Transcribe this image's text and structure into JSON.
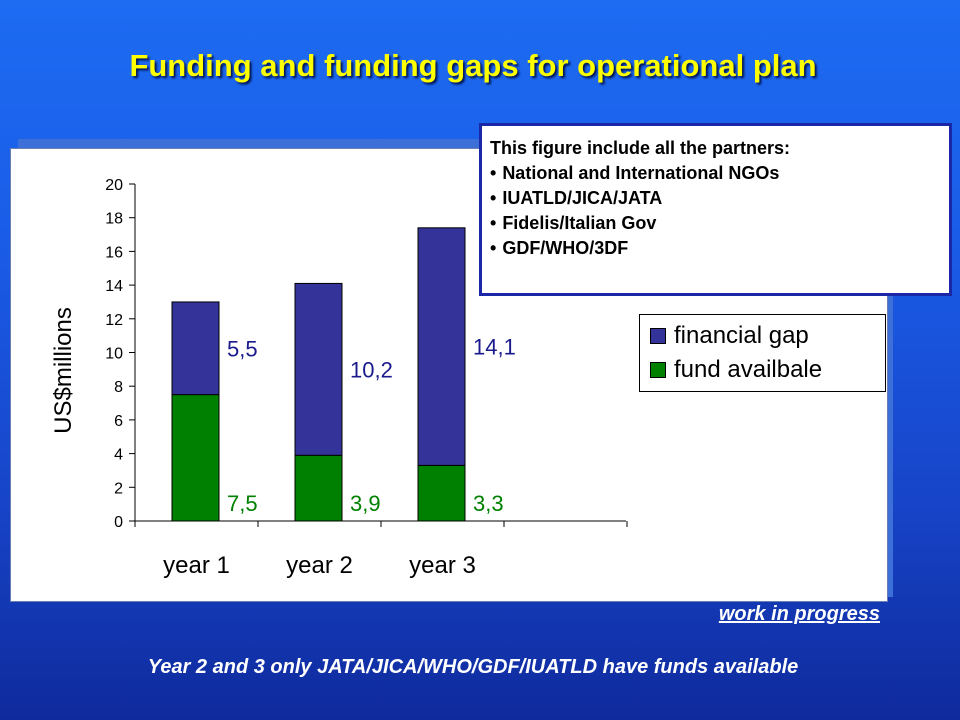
{
  "title": "Funding and funding gaps for operational plan",
  "note": {
    "title": "This figure include all the partners:",
    "items": [
      "National and International NGOs",
      "IUATLD/JICA/JATA",
      "Fidelis/Italian Gov",
      "GDF/WHO/3DF"
    ]
  },
  "status_text": "work in progress",
  "footer": "Year 2 and 3 only JATA/JICA/WHO/GDF/IUATLD have funds available",
  "chart_data": {
    "type": "bar",
    "stacked": true,
    "categories": [
      "year 1",
      "year 2",
      "year 3"
    ],
    "ylabel": "US$millions",
    "ylim": [
      0,
      20
    ],
    "yticks": [
      0,
      2,
      4,
      6,
      8,
      10,
      12,
      14,
      16,
      18,
      20
    ],
    "grid": false,
    "legend_position": "right",
    "series": [
      {
        "name": "fund availbale",
        "color": "#008000",
        "values": [
          7.5,
          3.9,
          3.3
        ],
        "labels": [
          "7,5",
          "3,9",
          "3,3"
        ],
        "label_color": "#008000"
      },
      {
        "name": "financial gap",
        "color": "#333399",
        "values": [
          5.5,
          10.2,
          14.1
        ],
        "labels": [
          "5,5",
          "10,2",
          "14,1"
        ],
        "label_color": "#1a1a8c"
      }
    ]
  }
}
